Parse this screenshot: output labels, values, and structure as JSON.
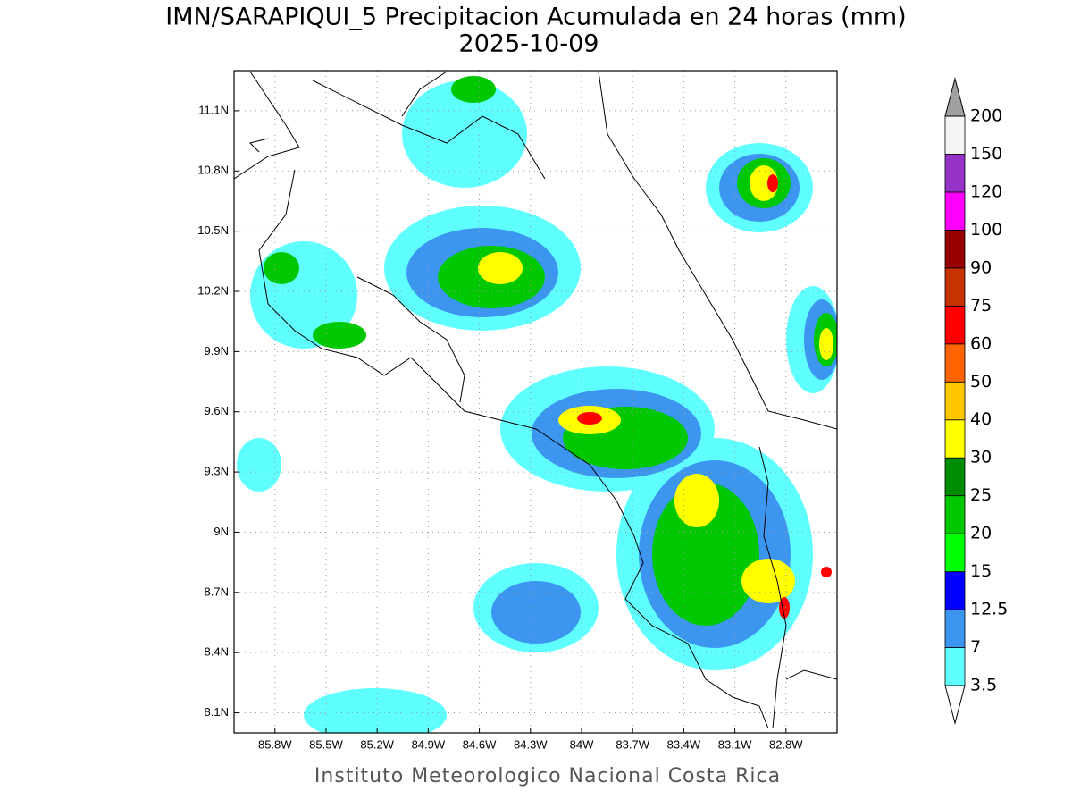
{
  "title": "IMN/SARAPIQUI_5 Precipitacion Acumulada en 24 horas (mm)",
  "subtitle": "2025-10-09",
  "footer": "Instituto Meteorologico Nacional Costa Rica",
  "map": {
    "xlim": [
      -86.04,
      -82.5
    ],
    "ylim": [
      8.0,
      11.3
    ],
    "xticks": [
      {
        "value": -85.8,
        "label": "85.8W"
      },
      {
        "value": -85.5,
        "label": "85.5W"
      },
      {
        "value": -85.2,
        "label": "85.2W"
      },
      {
        "value": -84.9,
        "label": "84.9W"
      },
      {
        "value": -84.6,
        "label": "84.6W"
      },
      {
        "value": -84.3,
        "label": "84.3W"
      },
      {
        "value": -84,
        "label": "84W"
      },
      {
        "value": -83.7,
        "label": "83.7W"
      },
      {
        "value": -83.4,
        "label": "83.4W"
      },
      {
        "value": -83.1,
        "label": "83.1W"
      },
      {
        "value": -82.8,
        "label": "82.8W"
      }
    ],
    "yticks": [
      {
        "value": 11.1,
        "label": "11.1N"
      },
      {
        "value": 10.8,
        "label": "10.8N"
      },
      {
        "value": 10.5,
        "label": "10.5N"
      },
      {
        "value": 10.2,
        "label": "10.2N"
      },
      {
        "value": 9.9,
        "label": "9.9N"
      },
      {
        "value": 9.6,
        "label": "9.6N"
      },
      {
        "value": 9.3,
        "label": "9.3N"
      },
      {
        "value": 9,
        "label": "9N"
      },
      {
        "value": 8.7,
        "label": "8.7N"
      },
      {
        "value": 8.4,
        "label": "8.4N"
      },
      {
        "value": 8.1,
        "label": "8.1N"
      }
    ],
    "grid": true
  },
  "colorbar": {
    "levels": [
      3.5,
      7,
      12.5,
      15,
      20,
      25,
      30,
      40,
      50,
      60,
      75,
      90,
      100,
      120,
      150,
      200
    ],
    "colors": [
      "#60ffff",
      "#3c96f0",
      "#0000ff",
      "#00ff00",
      "#00c800",
      "#008c00",
      "#ffff00",
      "#ffc800",
      "#ff6400",
      "#ff0000",
      "#c83200",
      "#960000",
      "#ff00ff",
      "#9632c8",
      "#f5f5f5"
    ],
    "under_color": "#ffffff",
    "over_color": "#a0a0a0"
  }
}
